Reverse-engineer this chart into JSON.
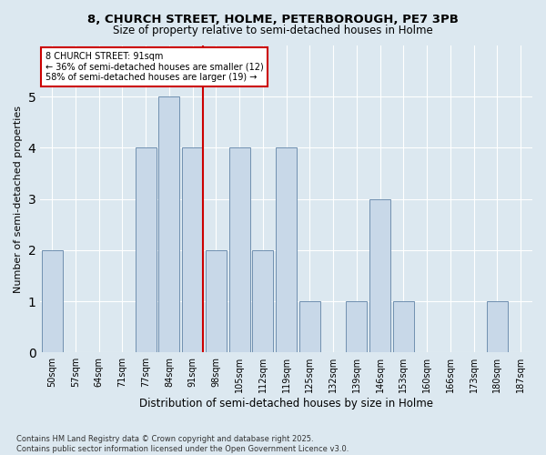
{
  "title1": "8, CHURCH STREET, HOLME, PETERBOROUGH, PE7 3PB",
  "title2": "Size of property relative to semi-detached houses in Holme",
  "xlabel": "Distribution of semi-detached houses by size in Holme",
  "ylabel": "Number of semi-detached properties",
  "footnote": "Contains HM Land Registry data © Crown copyright and database right 2025.\nContains public sector information licensed under the Open Government Licence v3.0.",
  "categories": [
    "50sqm",
    "57sqm",
    "64sqm",
    "71sqm",
    "77sqm",
    "84sqm",
    "91sqm",
    "98sqm",
    "105sqm",
    "112sqm",
    "119sqm",
    "125sqm",
    "132sqm",
    "139sqm",
    "146sqm",
    "153sqm",
    "160sqm",
    "166sqm",
    "173sqm",
    "180sqm",
    "187sqm"
  ],
  "values": [
    2,
    0,
    0,
    0,
    4,
    5,
    4,
    2,
    4,
    2,
    4,
    1,
    0,
    1,
    3,
    1,
    0,
    0,
    0,
    1,
    0
  ],
  "bar_color": "#c8d8e8",
  "bar_edge_color": "#7090b0",
  "highlight_index": 6,
  "highlight_line_color": "#cc0000",
  "annotation_title": "8 CHURCH STREET: 91sqm",
  "annotation_line1": "← 36% of semi-detached houses are smaller (12)",
  "annotation_line2": "58% of semi-detached houses are larger (19) →",
  "annotation_box_color": "#cc0000",
  "ylim": [
    0,
    6
  ],
  "yticks": [
    0,
    1,
    2,
    3,
    4,
    5,
    6
  ],
  "background_color": "#dce8f0",
  "grid_color": "#ffffff"
}
